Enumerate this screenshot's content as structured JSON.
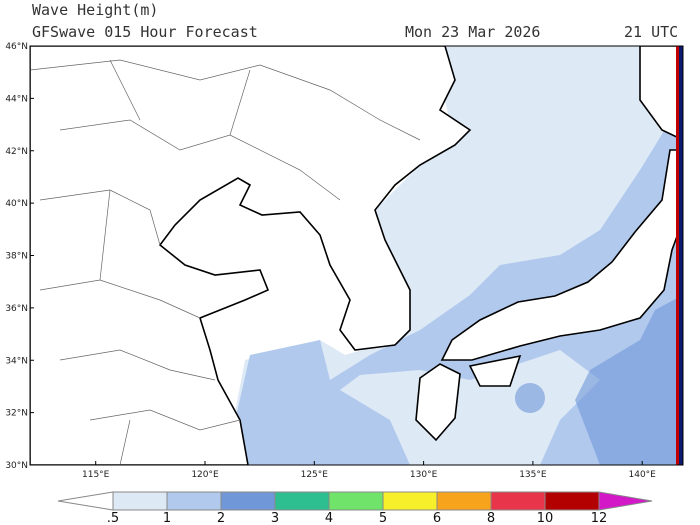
{
  "header": {
    "title": "Wave Height(m)",
    "subtitle": "GFSwave 015 Hour Forecast",
    "date": "Mon 23 Mar 2026",
    "time": "21 UTC"
  },
  "map": {
    "lat_labels": [
      "46°N",
      "44°N",
      "42°N",
      "40°N",
      "38°N",
      "36°N",
      "34°N",
      "32°N",
      "30°N"
    ],
    "lon_labels": [
      "115°E",
      "120°E",
      "125°E",
      "130°E",
      "135°E",
      "140°E"
    ]
  },
  "colorbar": {
    "labels": [
      ".5",
      "1",
      "2",
      "3",
      "4",
      "5",
      "6",
      "8",
      "10",
      "12"
    ],
    "colors": [
      "#ffffff",
      "#dde9f5",
      "#b2c9ee",
      "#7097d8",
      "#2dbf8f",
      "#6fe36a",
      "#f6ef2a",
      "#f7a31c",
      "#e8354a",
      "#b30000",
      "#d318c8"
    ]
  }
}
